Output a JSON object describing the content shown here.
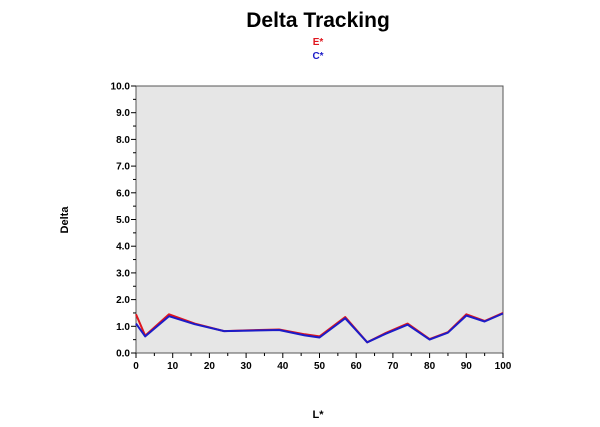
{
  "chart_data": {
    "type": "line",
    "title": "Delta Tracking",
    "xlabel": "L*",
    "ylabel": "Delta",
    "xlim": [
      0,
      100
    ],
    "ylim": [
      0,
      10
    ],
    "x_ticks": [
      "0",
      "10",
      "20",
      "30",
      "40",
      "50",
      "60",
      "70",
      "80",
      "90",
      "100"
    ],
    "y_ticks": [
      "0.0",
      "1.0",
      "2.0",
      "3.0",
      "4.0",
      "5.0",
      "6.0",
      "7.0",
      "8.0",
      "9.0",
      "10.0"
    ],
    "grid": false,
    "legend_position": "top-center",
    "plot_background": "#e6e6e6",
    "series": [
      {
        "name": "E*",
        "color": "#e0161e",
        "x": [
          0,
          2.5,
          9,
          16,
          24,
          31,
          39,
          46,
          50,
          57,
          63,
          68,
          74,
          80,
          85,
          90,
          95,
          100
        ],
        "y": [
          1.45,
          0.65,
          1.45,
          1.1,
          0.82,
          0.85,
          0.88,
          0.7,
          0.62,
          1.35,
          0.4,
          0.75,
          1.1,
          0.52,
          0.78,
          1.45,
          1.2,
          1.5
        ]
      },
      {
        "name": "C*",
        "color": "#1c1cc8",
        "x": [
          0,
          2.5,
          9,
          16,
          24,
          31,
          39,
          46,
          50,
          57,
          63,
          68,
          74,
          80,
          85,
          90,
          95,
          100
        ],
        "y": [
          1.1,
          0.62,
          1.38,
          1.08,
          0.82,
          0.84,
          0.86,
          0.66,
          0.58,
          1.3,
          0.4,
          0.72,
          1.06,
          0.5,
          0.76,
          1.4,
          1.18,
          1.48
        ]
      }
    ]
  }
}
